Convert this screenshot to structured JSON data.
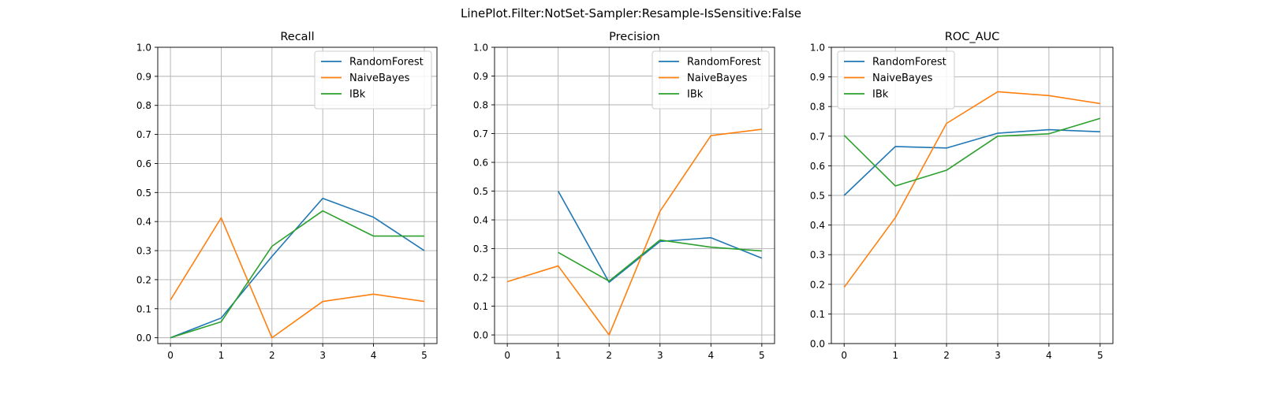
{
  "figure": {
    "title": "LinePlot.Filter:NotSet-Sampler:Resample-IsSensitive:False"
  },
  "chart_data": [
    {
      "type": "line",
      "title": "Recall",
      "xlabel": "",
      "ylabel": "",
      "xlim": [
        -0.25,
        5.25
      ],
      "ylim": [
        -0.02,
        1.0
      ],
      "xticks": [
        0,
        1,
        2,
        3,
        4,
        5
      ],
      "yticks": [
        0.0,
        0.1,
        0.2,
        0.3,
        0.4,
        0.5,
        0.6,
        0.7,
        0.8,
        0.9,
        1.0
      ],
      "grid": true,
      "legend": "top-right",
      "series": [
        {
          "name": "RandomForest",
          "color": "#1f77b4",
          "x": [
            0,
            1,
            2,
            3,
            4,
            5
          ],
          "values": [
            0.0,
            0.068,
            0.28,
            0.48,
            0.415,
            0.3
          ]
        },
        {
          "name": "NaiveBayes",
          "color": "#ff7f0e",
          "x": [
            0,
            1,
            2,
            3,
            4,
            5
          ],
          "values": [
            0.13,
            0.413,
            0.0,
            0.125,
            0.15,
            0.125
          ]
        },
        {
          "name": "IBk",
          "color": "#2ca02c",
          "x": [
            0,
            1,
            2,
            3,
            4,
            5
          ],
          "values": [
            0.0,
            0.055,
            0.315,
            0.437,
            0.35,
            0.35
          ]
        }
      ]
    },
    {
      "type": "line",
      "title": "Precision",
      "xlabel": "",
      "ylabel": "",
      "xlim": [
        -0.25,
        5.25
      ],
      "ylim": [
        -0.03,
        1.0
      ],
      "xticks": [
        0,
        1,
        2,
        3,
        4,
        5
      ],
      "yticks": [
        0.0,
        0.1,
        0.2,
        0.3,
        0.4,
        0.5,
        0.6,
        0.7,
        0.8,
        0.9,
        1.0
      ],
      "grid": true,
      "legend": "top-right",
      "series": [
        {
          "name": "RandomForest",
          "color": "#1f77b4",
          "x": [
            1,
            2,
            3,
            4,
            5
          ],
          "values": [
            0.5,
            0.183,
            0.325,
            0.338,
            0.267
          ]
        },
        {
          "name": "NaiveBayes",
          "color": "#ff7f0e",
          "x": [
            0,
            1,
            2,
            3,
            4,
            5
          ],
          "values": [
            0.185,
            0.24,
            0.0,
            0.43,
            0.693,
            0.715
          ]
        },
        {
          "name": "IBk",
          "color": "#2ca02c",
          "x": [
            1,
            2,
            3,
            4,
            5
          ],
          "values": [
            0.287,
            0.187,
            0.33,
            0.305,
            0.292
          ]
        }
      ]
    },
    {
      "type": "line",
      "title": "ROC_AUC",
      "xlabel": "",
      "ylabel": "",
      "xlim": [
        -0.25,
        5.25
      ],
      "ylim": [
        0.0,
        1.0
      ],
      "xticks": [
        0,
        1,
        2,
        3,
        4,
        5
      ],
      "yticks": [
        0.0,
        0.1,
        0.2,
        0.3,
        0.4,
        0.5,
        0.6,
        0.7,
        0.8,
        0.9,
        1.0
      ],
      "grid": true,
      "legend": "top-left",
      "series": [
        {
          "name": "RandomForest",
          "color": "#1f77b4",
          "x": [
            0,
            1,
            2,
            3,
            4,
            5
          ],
          "values": [
            0.5,
            0.665,
            0.66,
            0.71,
            0.722,
            0.715
          ]
        },
        {
          "name": "NaiveBayes",
          "color": "#ff7f0e",
          "x": [
            0,
            1,
            2,
            3,
            4,
            5
          ],
          "values": [
            0.19,
            0.425,
            0.743,
            0.85,
            0.837,
            0.81
          ]
        },
        {
          "name": "IBk",
          "color": "#2ca02c",
          "x": [
            0,
            1,
            2,
            3,
            4,
            5
          ],
          "values": [
            0.703,
            0.532,
            0.585,
            0.7,
            0.708,
            0.76
          ]
        }
      ]
    }
  ]
}
